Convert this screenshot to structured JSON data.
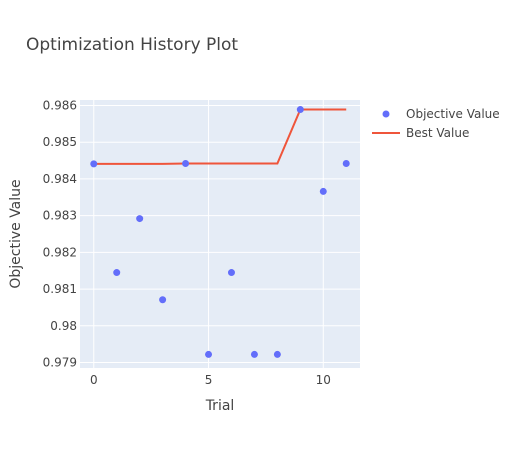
{
  "chart_data": {
    "type": "scatter",
    "title": "Optimization History Plot",
    "xlabel": "Trial",
    "ylabel": "Objective Value",
    "xlim": [
      -0.6,
      11.6
    ],
    "ylim": [
      0.97885,
      0.98615
    ],
    "x_ticks": [
      0,
      5,
      10
    ],
    "x_tick_labels": [
      "0",
      "5",
      "10"
    ],
    "y_ticks": [
      0.979,
      0.98,
      0.981,
      0.982,
      0.983,
      0.984,
      0.985,
      0.986
    ],
    "y_tick_labels": [
      "0.979",
      "0.98",
      "0.981",
      "0.982",
      "0.983",
      "0.984",
      "0.985",
      "0.986"
    ],
    "grid": true,
    "legend_position": "top-right",
    "colors": {
      "plot_bg": "#E5ECF6",
      "grid": "#ffffff",
      "objective": "#636EFA",
      "best": "#EF553B"
    },
    "series": [
      {
        "name": "Objective Value",
        "mode": "markers",
        "x": [
          0,
          1,
          2,
          3,
          4,
          5,
          6,
          7,
          8,
          9,
          10,
          11
        ],
        "y": [
          0.98441,
          0.98145,
          0.98292,
          0.98071,
          0.98442,
          0.97922,
          0.98145,
          0.97922,
          0.97922,
          0.98589,
          0.98366,
          0.98442
        ]
      },
      {
        "name": "Best Value",
        "mode": "line",
        "x": [
          0,
          1,
          2,
          3,
          4,
          5,
          6,
          7,
          8,
          9,
          10,
          11
        ],
        "y": [
          0.98441,
          0.98441,
          0.98441,
          0.98441,
          0.98442,
          0.98442,
          0.98442,
          0.98442,
          0.98442,
          0.98589,
          0.98589,
          0.98589
        ]
      }
    ]
  }
}
